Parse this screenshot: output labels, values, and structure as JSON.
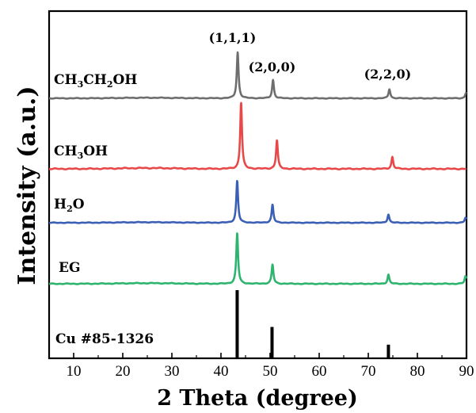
{
  "chart_data": {
    "type": "line",
    "title": "",
    "xlabel": "2 Theta (degree)",
    "ylabel": "Intensity (a.u.)",
    "xlim": [
      5,
      90
    ],
    "x_ticks": [
      "10",
      "20",
      "30",
      "40",
      "50",
      "60",
      "70",
      "80",
      "90"
    ],
    "y_ticks": [],
    "grid": false,
    "legend": "inline labels at left",
    "peak_labels": [
      {
        "text": "(1,1,1)",
        "x": 43.3
      },
      {
        "text": "(2,0,0)",
        "x": 50.4
      },
      {
        "text": "(2,2,0)",
        "x": 74.1
      }
    ],
    "series": [
      {
        "name_pre": "CH",
        "name_sub1": "3",
        "name_mid": "CH",
        "name_sub2": "2",
        "name_post": "OH",
        "color": "#6e6e6e",
        "peaks": [
          [
            43.4,
            1.0
          ],
          [
            50.6,
            0.4
          ],
          [
            74.3,
            0.2
          ],
          [
            89.9,
            0.12
          ]
        ]
      },
      {
        "name_pre": "CH",
        "name_sub1": "3",
        "name_mid": "OH",
        "name_sub2": "",
        "name_post": "",
        "color": "#e84848",
        "peaks": [
          [
            44.1,
            1.0
          ],
          [
            51.4,
            0.43
          ],
          [
            74.9,
            0.18
          ]
        ]
      },
      {
        "name_pre": "H",
        "name_sub1": "2",
        "name_mid": "O",
        "name_sub2": "",
        "name_post": "",
        "color": "#3a5fb5",
        "peaks": [
          [
            43.3,
            1.0
          ],
          [
            50.5,
            0.43
          ],
          [
            74.1,
            0.2
          ],
          [
            89.8,
            0.12
          ]
        ]
      },
      {
        "name_pre": "EG",
        "name_sub1": "",
        "name_mid": "",
        "name_sub2": "",
        "name_post": "",
        "color": "#2eb46e",
        "peaks": [
          [
            43.3,
            1.0
          ],
          [
            50.5,
            0.38
          ],
          [
            74.1,
            0.18
          ],
          [
            89.8,
            0.15
          ]
        ]
      }
    ],
    "reference": {
      "name": "Cu #85-1326",
      "color": "#000000",
      "lines": [
        [
          43.3,
          100
        ],
        [
          50.4,
          46
        ],
        [
          74.1,
          20
        ]
      ]
    }
  }
}
